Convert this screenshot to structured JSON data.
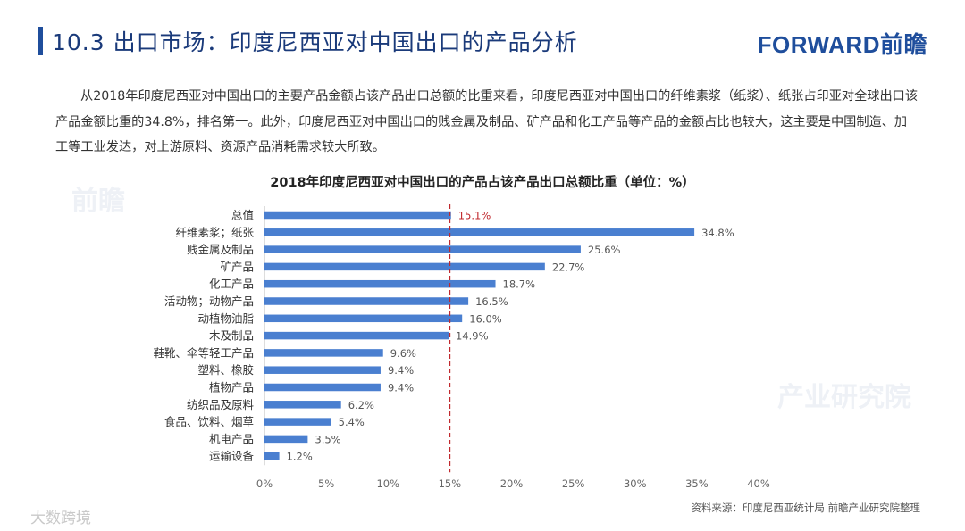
{
  "header": {
    "title": "10.3 出口市场：印度尼西亚对中国出口的产品分析",
    "brand": "FORWARD前瞻"
  },
  "paragraph": "从2018年印度尼西亚对中国出口的主要产品金额占该产品出口总额的比重来看，印度尼西亚对中国出口的纤维素浆（纸浆）、纸张占印亚对全球出口该产品金额比重的34.8%，排名第一。此外，印度尼西亚对中国出口的贱金属及制品、矿产品和化工产品等产品的金额占比也较大，这主要是中国制造、加工等工业发达，对上游原料、资源产品消耗需求较大所致。",
  "chart_data": {
    "type": "bar",
    "orientation": "horizontal",
    "title": "2018年印度尼西亚对中国出口的产品占该产品出口总额比重（单位：%）",
    "categories": [
      "总值",
      "纤维素浆；纸张",
      "贱金属及制品",
      "矿产品",
      "化工产品",
      "活动物；动物产品",
      "动植物油脂",
      "木及制品",
      "鞋靴、伞等轻工产品",
      "塑料、橡胶",
      "植物产品",
      "纺织品及原料",
      "食品、饮料、烟草",
      "机电产品",
      "运输设备"
    ],
    "values": [
      15.1,
      34.8,
      25.6,
      22.7,
      18.7,
      16.5,
      16.0,
      14.9,
      9.6,
      9.4,
      9.4,
      6.2,
      5.4,
      3.5,
      1.2
    ],
    "value_labels": [
      "15.1%",
      "34.8%",
      "25.6%",
      "22.7%",
      "18.7%",
      "16.5%",
      "16.0%",
      "14.9%",
      "9.6%",
      "9.4%",
      "9.4%",
      "6.2%",
      "5.4%",
      "3.5%",
      "1.2%"
    ],
    "xlim": [
      0,
      40
    ],
    "xticks": [
      0,
      5,
      10,
      15,
      20,
      25,
      30,
      35,
      40
    ],
    "xtick_labels": [
      "0%",
      "5%",
      "10%",
      "15%",
      "20%",
      "25%",
      "30%",
      "35%",
      "40%"
    ],
    "reference_line": 15,
    "colors": {
      "bar": "#4a7fd0",
      "reference": "#c0282d",
      "highlight_label": "#c0282d",
      "axis": "#bbbbbb",
      "label": "#333333"
    }
  },
  "footer": {
    "source": "资料来源：印度尼西亚统计局  前瞻产业研究院整理",
    "watermark": "大数跨境"
  }
}
